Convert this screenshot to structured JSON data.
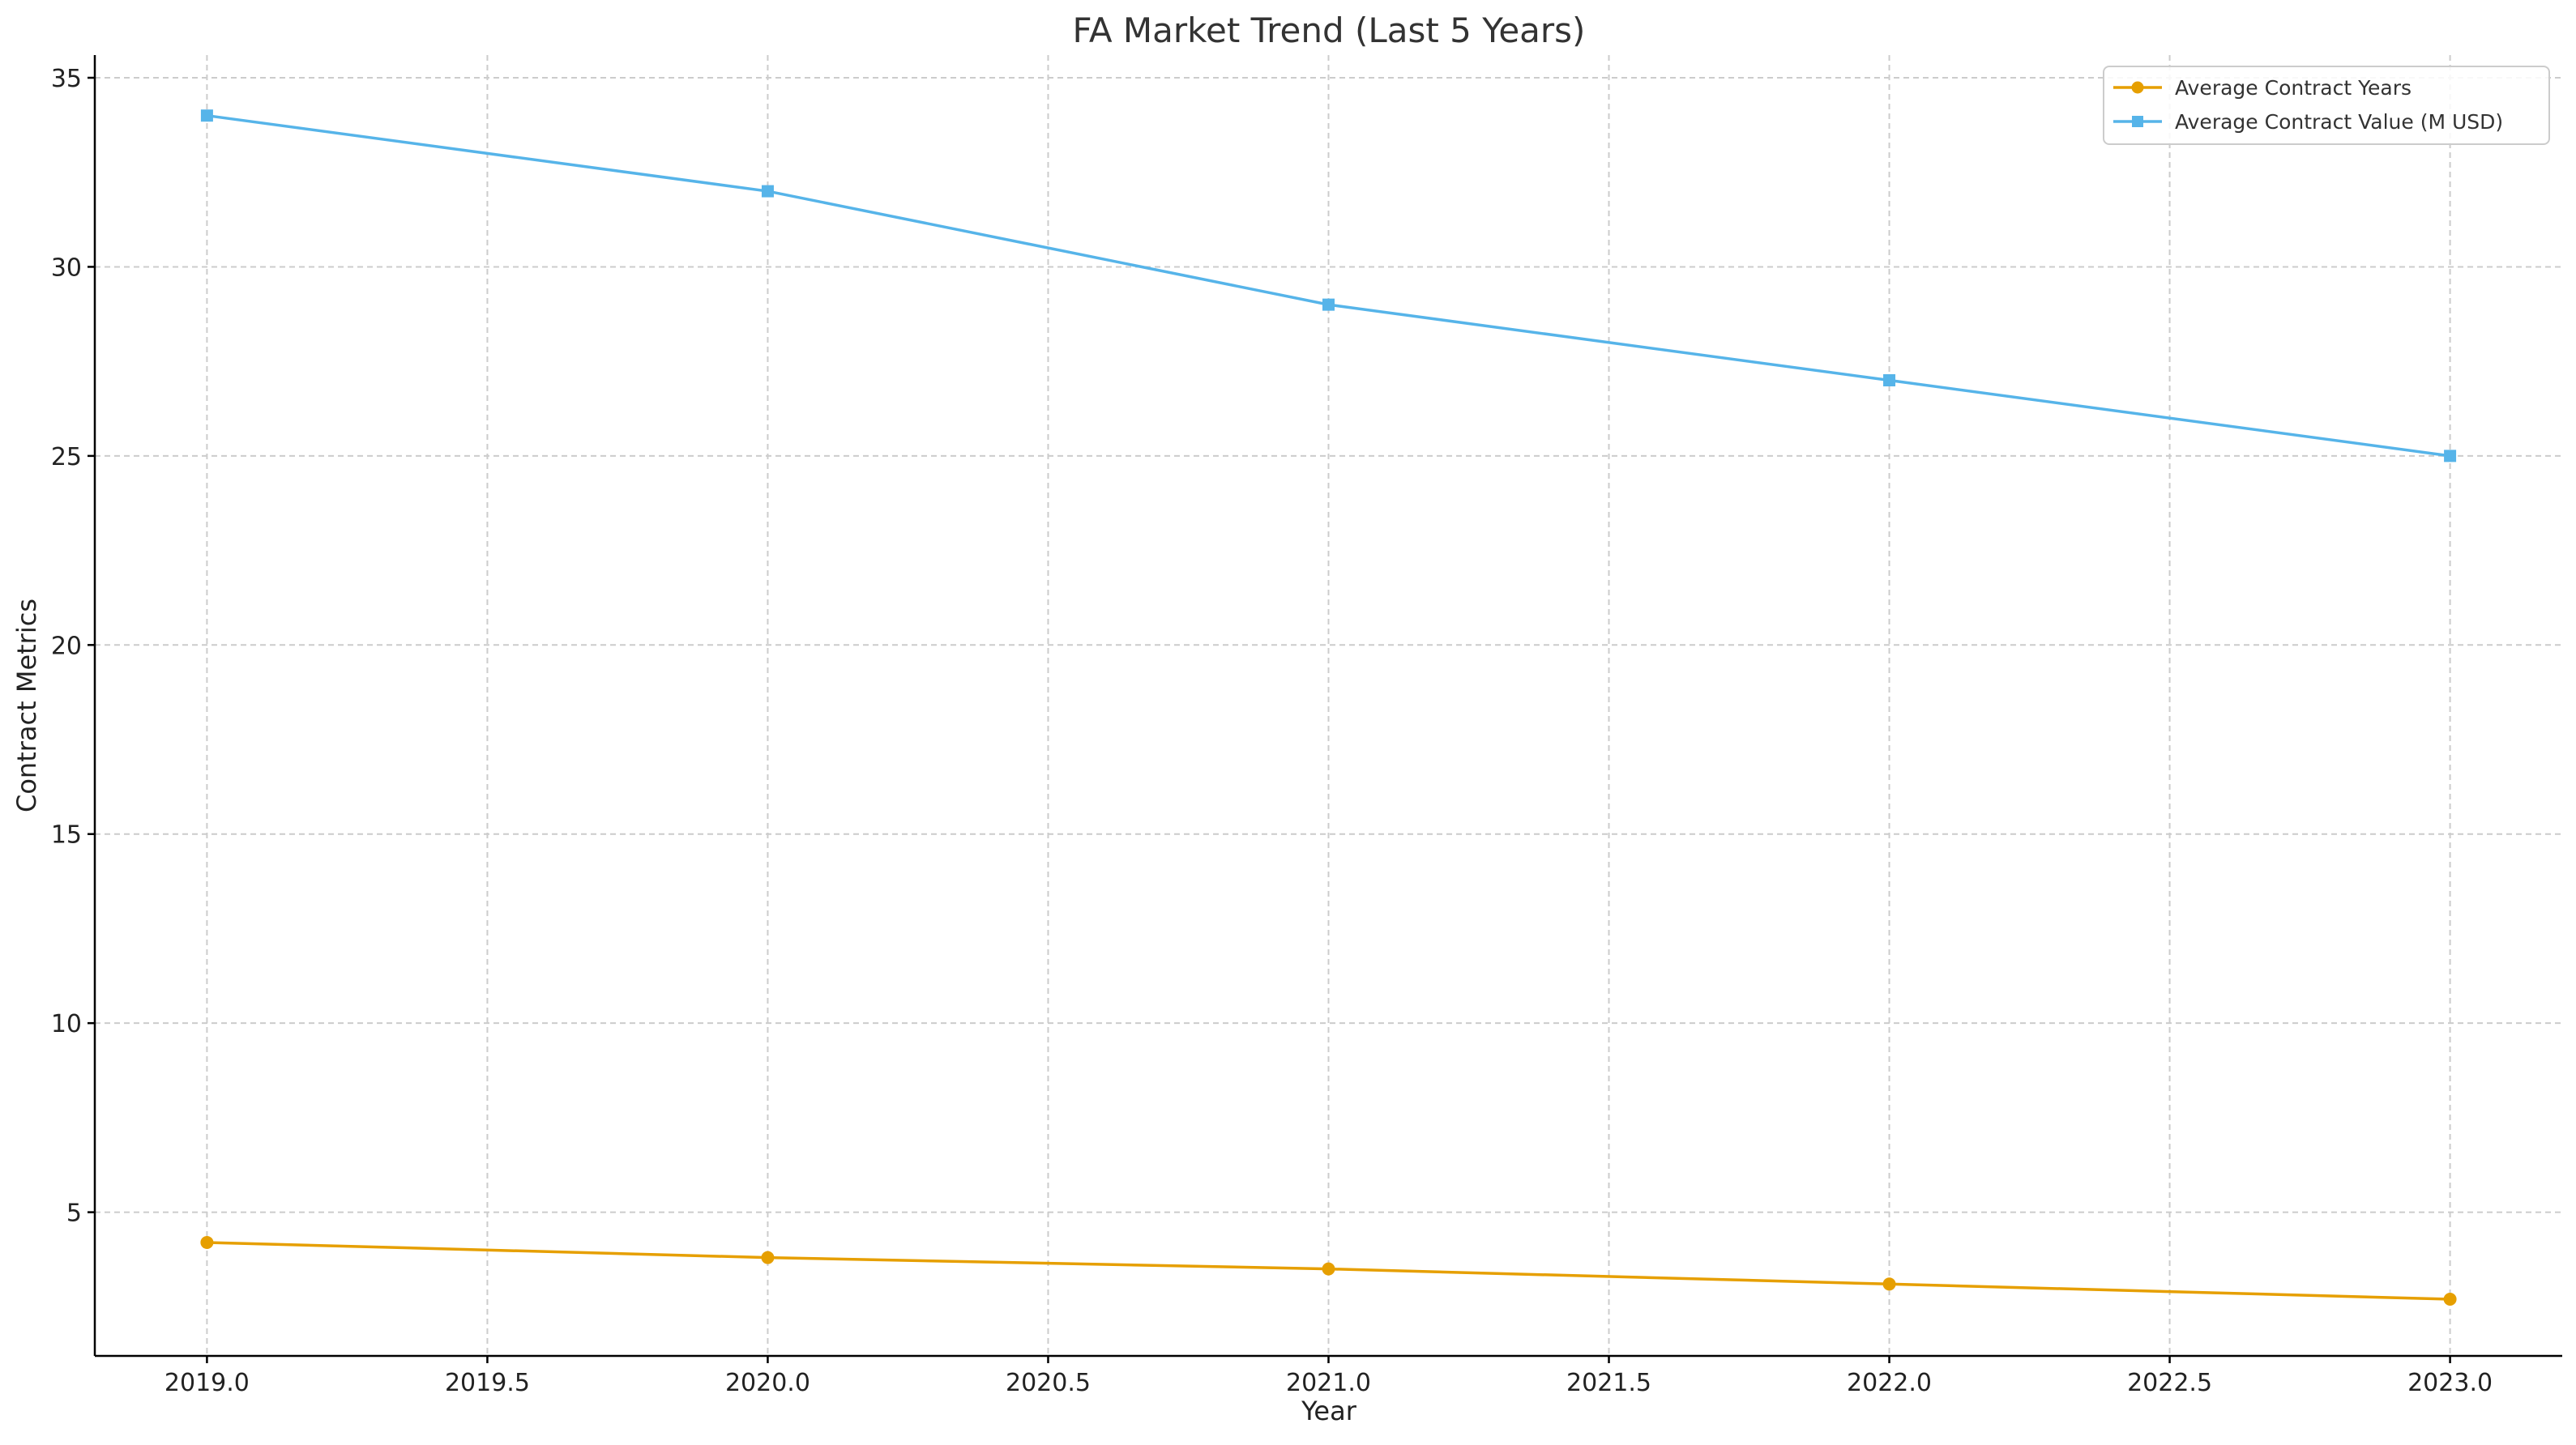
{
  "chart_data": {
    "type": "line",
    "title": "FA Market Trend (Last 5 Years)",
    "xlabel": "Year",
    "ylabel": "Contract Metrics",
    "xlim": [
      2018.8,
      2023.2
    ],
    "ylim": [
      1.2,
      35.6
    ],
    "x_ticks": [
      "2019.0",
      "2019.5",
      "2020.0",
      "2020.5",
      "2021.0",
      "2021.5",
      "2022.0",
      "2022.5",
      "2023.0"
    ],
    "y_ticks": [
      "5",
      "10",
      "15",
      "20",
      "25",
      "30",
      "35"
    ],
    "grid": true,
    "legend_position": "top-right",
    "x": [
      2019,
      2020,
      2021,
      2022,
      2023
    ],
    "series": [
      {
        "name": "Average Contract Years",
        "values": [
          4.2,
          3.8,
          3.5,
          3.1,
          2.7
        ],
        "color": "#E69F00",
        "marker": "circle"
      },
      {
        "name": "Average Contract Value (M USD)",
        "values": [
          34,
          32,
          29,
          27,
          25
        ],
        "color": "#56B4E9",
        "marker": "square"
      }
    ]
  }
}
